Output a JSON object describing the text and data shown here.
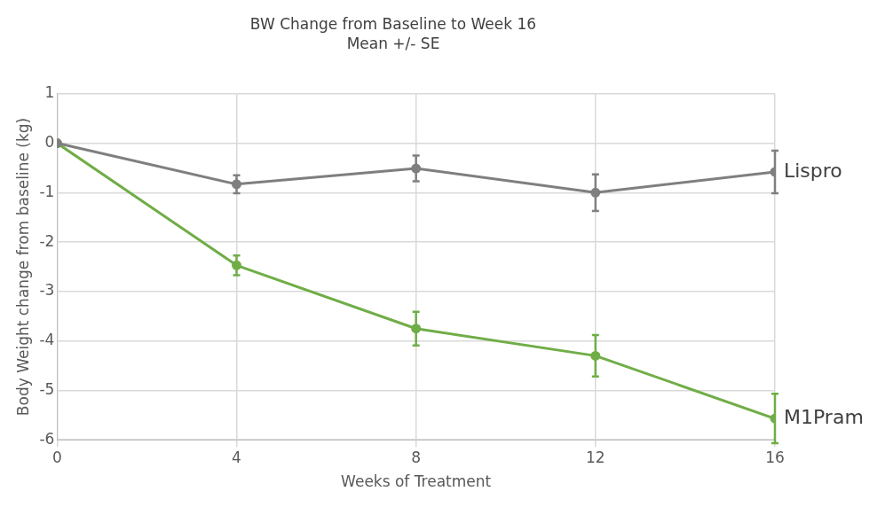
{
  "chart_data": {
    "type": "line",
    "title": "BW Change from Baseline to Week 16",
    "subtitle": "Mean +/- SE",
    "xlabel": "Weeks of Treatment",
    "ylabel": "Body Weight change from baseline (kg)",
    "x": [
      0,
      4,
      8,
      12,
      16
    ],
    "series": [
      {
        "name": "Lispro",
        "color": "#7f7f7f",
        "values": [
          0,
          -0.83,
          -0.51,
          -1.0,
          -0.58
        ],
        "errors": [
          null,
          0.18,
          0.26,
          0.37,
          0.43
        ]
      },
      {
        "name": "M1Pram",
        "color": "#70ad47",
        "values": [
          0,
          -2.47,
          -3.75,
          -4.3,
          -5.57
        ],
        "errors": [
          null,
          0.2,
          0.34,
          0.42,
          0.5
        ]
      }
    ],
    "xlim": [
      0,
      16
    ],
    "xticks": [
      0,
      4,
      8,
      12,
      16
    ],
    "ylim": [
      -6,
      1
    ],
    "yticks": [
      -6,
      -5,
      -4,
      -3,
      -2,
      -1,
      0,
      1
    ],
    "grid": true,
    "legend": false,
    "marker": "circle",
    "line_style": "solid"
  }
}
